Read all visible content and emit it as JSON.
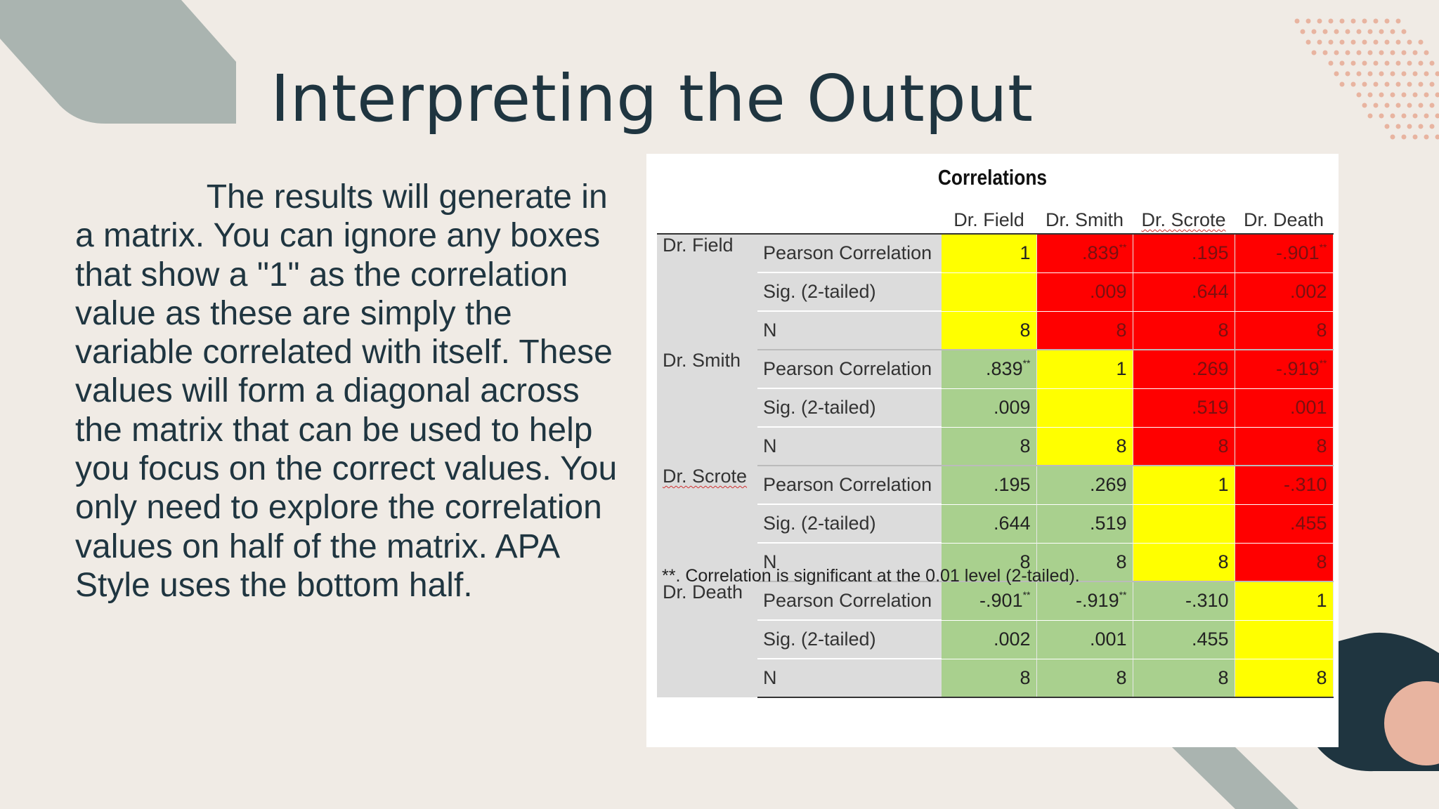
{
  "slide": {
    "title": "Interpreting the Output",
    "body": "              The results will generate in a matrix. You can ignore any boxes that show a \"1\" as the correlation value as these are simply the variable correlated with itself. These values will form a diagonal across the matrix that can be used to help you focus on the correct values. You only need to explore the correlation values on half of the matrix. APA Style uses the bottom half."
  },
  "table": {
    "title": "Correlations",
    "columns": [
      "Dr. Field",
      "Dr. Smith",
      "Dr. Scrote",
      "Dr. Death"
    ],
    "stat_labels": [
      "Pearson Correlation",
      "Sig. (2-tailed)",
      "N"
    ],
    "rows": [
      {
        "variable": "Dr. Field",
        "pearson": [
          {
            "v": "1",
            "s": ""
          },
          {
            "v": ".839",
            "s": "**"
          },
          {
            "v": ".195",
            "s": ""
          },
          {
            "v": "-.901",
            "s": "**"
          }
        ],
        "sig": [
          "",
          ".009",
          ".644",
          ".002"
        ],
        "n": [
          "8",
          "8",
          "8",
          "8"
        ]
      },
      {
        "variable": "Dr. Smith",
        "pearson": [
          {
            "v": ".839",
            "s": "**"
          },
          {
            "v": "1",
            "s": ""
          },
          {
            "v": ".269",
            "s": ""
          },
          {
            "v": "-.919",
            "s": "**"
          }
        ],
        "sig": [
          ".009",
          "",
          ".519",
          ".001"
        ],
        "n": [
          "8",
          "8",
          "8",
          "8"
        ]
      },
      {
        "variable": "Dr. Scrote",
        "pearson": [
          {
            "v": ".195",
            "s": ""
          },
          {
            "v": ".269",
            "s": ""
          },
          {
            "v": "1",
            "s": ""
          },
          {
            "v": "-.310",
            "s": ""
          }
        ],
        "sig": [
          ".644",
          ".519",
          "",
          ".455"
        ],
        "n": [
          "8",
          "8",
          "8",
          "8"
        ]
      },
      {
        "variable": "Dr. Death",
        "pearson": [
          {
            "v": "-.901",
            "s": "**"
          },
          {
            "v": "-.919",
            "s": "**"
          },
          {
            "v": "-.310",
            "s": ""
          },
          {
            "v": "1",
            "s": ""
          }
        ],
        "sig": [
          ".002",
          ".001",
          ".455",
          ""
        ],
        "n": [
          "8",
          "8",
          "8",
          "8"
        ]
      }
    ],
    "footnote": "**. Correlation is significant at the 0.01 level (2-tailed).",
    "highlight_colors": {
      "diagonal": "#ffff00",
      "upper_half": "#ff0000",
      "lower_half": "#a9d08e"
    }
  },
  "theme": {
    "background": "#f0ebe5",
    "text": "#1f3540",
    "accent_gray": "#aab4b0",
    "accent_peach": "#e8b4a0",
    "accent_dark": "#1f3540"
  }
}
